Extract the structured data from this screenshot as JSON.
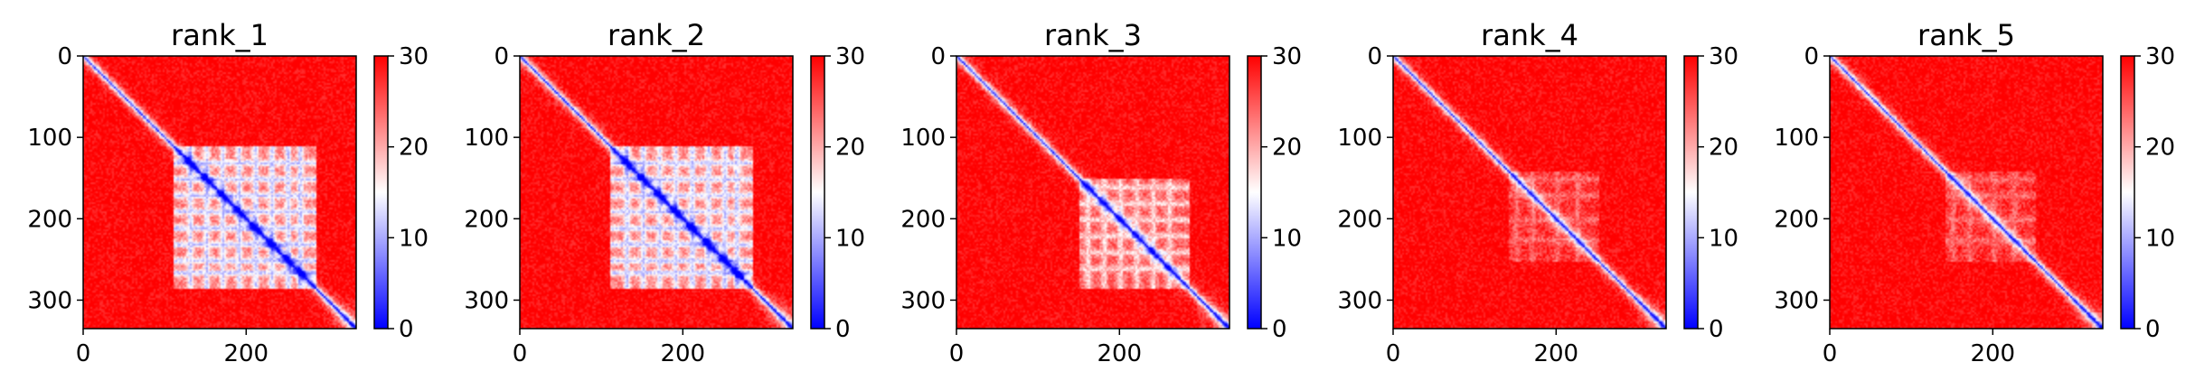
{
  "chart_data": [
    {
      "type": "heatmap",
      "title": "rank_1",
      "xlim": [
        0,
        335
      ],
      "ylim": [
        335,
        0
      ],
      "xticks": [
        {
          "value": 0,
          "label": "0"
        },
        {
          "value": 200,
          "label": "200"
        }
      ],
      "yticks": [
        {
          "value": 0,
          "label": "0"
        },
        {
          "value": 100,
          "label": "100"
        },
        {
          "value": 200,
          "label": "200"
        },
        {
          "value": 300,
          "label": "300"
        }
      ],
      "colorbar": {
        "min": 0,
        "max": 30,
        "ticks": [
          {
            "value": 0,
            "label": "0"
          },
          {
            "value": 10,
            "label": "10"
          },
          {
            "value": 20,
            "label": "20"
          },
          {
            "value": 30,
            "label": "30"
          }
        ]
      },
      "colormap": "bwr",
      "length": 335,
      "domain_block": {
        "start": 110,
        "end": 285,
        "strength": 0.85,
        "stripes": [
          130,
          150,
          170,
          190,
          210,
          230,
          250,
          265
        ]
      }
    },
    {
      "type": "heatmap",
      "title": "rank_2",
      "xlim": [
        0,
        335
      ],
      "ylim": [
        335,
        0
      ],
      "xticks": [
        {
          "value": 0,
          "label": "0"
        },
        {
          "value": 200,
          "label": "200"
        }
      ],
      "yticks": [
        {
          "value": 0,
          "label": "0"
        },
        {
          "value": 100,
          "label": "100"
        },
        {
          "value": 200,
          "label": "200"
        },
        {
          "value": 300,
          "label": "300"
        }
      ],
      "colorbar": {
        "min": 0,
        "max": 30,
        "ticks": [
          {
            "value": 0,
            "label": "0"
          },
          {
            "value": 10,
            "label": "10"
          },
          {
            "value": 20,
            "label": "20"
          },
          {
            "value": 30,
            "label": "30"
          }
        ]
      },
      "colormap": "bwr",
      "length": 335,
      "domain_block": {
        "start": 110,
        "end": 285,
        "strength": 0.85,
        "stripes": [
          130,
          150,
          170,
          190,
          210,
          230,
          250,
          265
        ]
      }
    },
    {
      "type": "heatmap",
      "title": "rank_3",
      "xlim": [
        0,
        335
      ],
      "ylim": [
        335,
        0
      ],
      "xticks": [
        {
          "value": 0,
          "label": "0"
        },
        {
          "value": 200,
          "label": "200"
        }
      ],
      "yticks": [
        {
          "value": 0,
          "label": "0"
        },
        {
          "value": 100,
          "label": "100"
        },
        {
          "value": 200,
          "label": "200"
        },
        {
          "value": 300,
          "label": "300"
        }
      ],
      "colorbar": {
        "min": 0,
        "max": 30,
        "ticks": [
          {
            "value": 0,
            "label": "0"
          },
          {
            "value": 10,
            "label": "10"
          },
          {
            "value": 20,
            "label": "20"
          },
          {
            "value": 30,
            "label": "30"
          }
        ]
      },
      "colormap": "bwr",
      "length": 335,
      "domain_block": {
        "start": 150,
        "end": 285,
        "strength": 0.6,
        "stripes": [
          160,
          180,
          200,
          220,
          240,
          260
        ]
      }
    },
    {
      "type": "heatmap",
      "title": "rank_4",
      "xlim": [
        0,
        335
      ],
      "ylim": [
        335,
        0
      ],
      "xticks": [
        {
          "value": 0,
          "label": "0"
        },
        {
          "value": 200,
          "label": "200"
        }
      ],
      "yticks": [
        {
          "value": 0,
          "label": "0"
        },
        {
          "value": 100,
          "label": "100"
        },
        {
          "value": 200,
          "label": "200"
        },
        {
          "value": 300,
          "label": "300"
        }
      ],
      "colorbar": {
        "min": 0,
        "max": 30,
        "ticks": [
          {
            "value": 0,
            "label": "0"
          },
          {
            "value": 10,
            "label": "10"
          },
          {
            "value": 20,
            "label": "20"
          },
          {
            "value": 30,
            "label": "30"
          }
        ]
      },
      "colormap": "bwr",
      "length": 335,
      "domain_block": {
        "start": 140,
        "end": 250,
        "strength": 0.3,
        "stripes": [
          150,
          170,
          200,
          225
        ]
      }
    },
    {
      "type": "heatmap",
      "title": "rank_5",
      "xlim": [
        0,
        335
      ],
      "ylim": [
        335,
        0
      ],
      "xticks": [
        {
          "value": 0,
          "label": "0"
        },
        {
          "value": 200,
          "label": "200"
        }
      ],
      "yticks": [
        {
          "value": 0,
          "label": "0"
        },
        {
          "value": 100,
          "label": "100"
        },
        {
          "value": 200,
          "label": "200"
        },
        {
          "value": 300,
          "label": "300"
        }
      ],
      "colorbar": {
        "min": 0,
        "max": 30,
        "ticks": [
          {
            "value": 0,
            "label": "0"
          },
          {
            "value": 10,
            "label": "10"
          },
          {
            "value": 20,
            "label": "20"
          },
          {
            "value": 30,
            "label": "30"
          }
        ]
      },
      "colormap": "bwr",
      "length": 335,
      "domain_block": {
        "start": 140,
        "end": 250,
        "strength": 0.3,
        "stripes": [
          150,
          170,
          200,
          225
        ]
      }
    }
  ]
}
